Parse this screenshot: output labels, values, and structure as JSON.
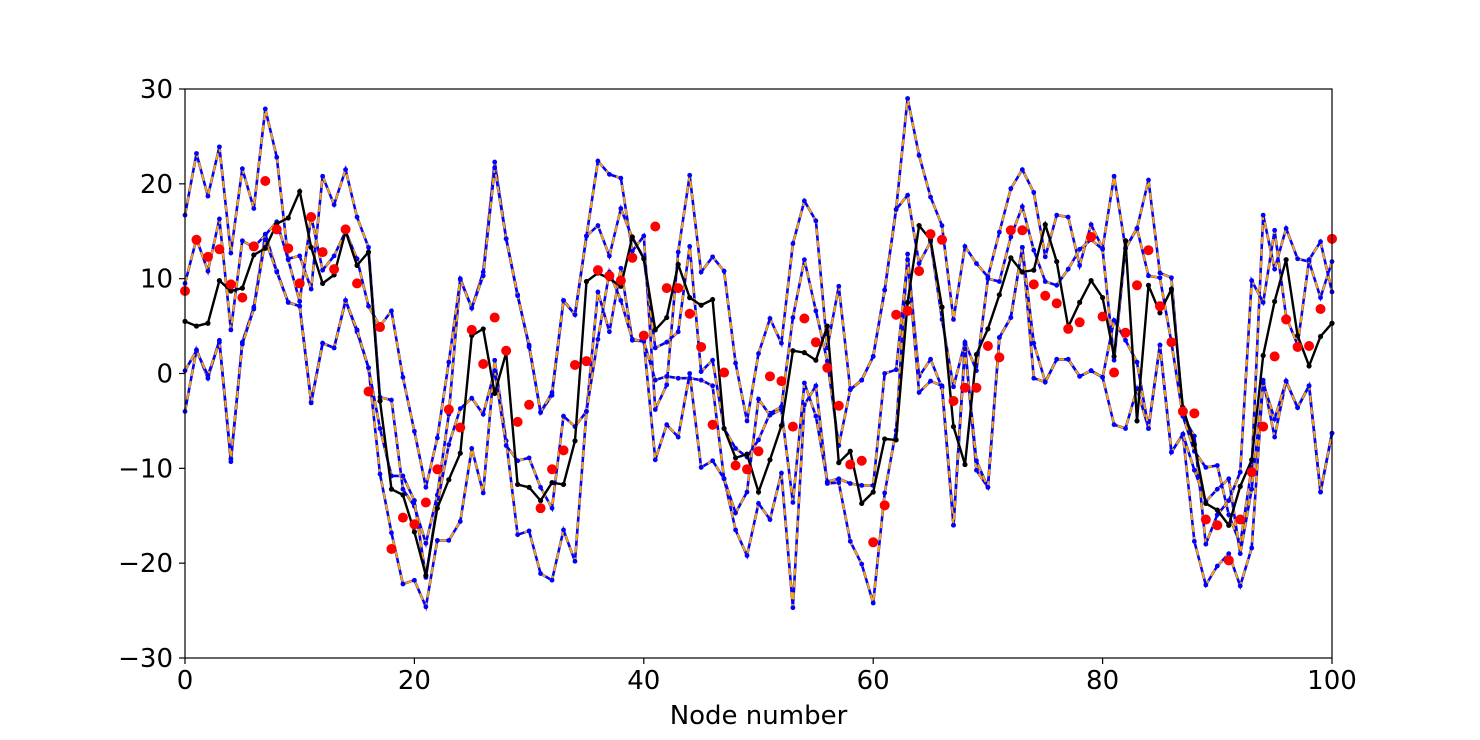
{
  "chart_data": {
    "type": "line",
    "title": "",
    "xlabel": "Node number",
    "ylabel": "",
    "xlim": [
      0,
      100
    ],
    "ylim": [
      -30,
      30
    ],
    "xticks": [
      0,
      20,
      40,
      60,
      80,
      100
    ],
    "yticks": [
      -30,
      -20,
      -10,
      0,
      10,
      20,
      30
    ],
    "x": [
      0,
      1,
      2,
      3,
      4,
      5,
      6,
      7,
      8,
      9,
      10,
      11,
      12,
      13,
      14,
      15,
      16,
      17,
      18,
      19,
      20,
      21,
      22,
      23,
      24,
      25,
      26,
      27,
      28,
      29,
      30,
      31,
      32,
      33,
      34,
      35,
      36,
      37,
      38,
      39,
      40,
      41,
      42,
      43,
      44,
      45,
      46,
      47,
      48,
      49,
      50,
      51,
      52,
      53,
      54,
      55,
      56,
      57,
      58,
      59,
      60,
      61,
      62,
      63,
      64,
      65,
      66,
      67,
      68,
      69,
      70,
      71,
      72,
      73,
      74,
      75,
      76,
      77,
      78,
      79,
      80,
      81,
      82,
      83,
      84,
      85,
      86,
      87,
      88,
      89,
      90,
      91,
      92,
      93,
      94,
      95,
      96,
      97,
      98,
      99,
      100
    ],
    "colors": {
      "mean": "#000000",
      "bands": "#0000ff",
      "band_dash": "#ffa500",
      "observations": "#ff0000"
    },
    "series": [
      {
        "role": "mean",
        "values": [
          5.5,
          5.0,
          5.3,
          9.8,
          8.7,
          9.0,
          12.5,
          13.2,
          15.8,
          16.4,
          19.2,
          13.3,
          9.5,
          10.4,
          15.0,
          11.4,
          12.8,
          -2.9,
          -12.2,
          -12.8,
          -16.7,
          -21.3,
          -14.2,
          -11.2,
          -8.4,
          4.0,
          4.7,
          -2.1,
          2.2,
          -11.7,
          -12.0,
          -13.4,
          -11.5,
          -11.7,
          -7.1,
          9.7,
          10.6,
          10.0,
          9.2,
          14.4,
          12.1,
          4.6,
          5.9,
          11.5,
          8.0,
          7.2,
          7.8,
          -5.8,
          -8.9,
          -8.5,
          -12.5,
          -9.1,
          -5.5,
          2.4,
          2.2,
          1.4,
          5.0,
          -9.4,
          -8.2,
          -13.7,
          -12.5,
          -6.9,
          -7.0,
          7.5,
          15.6,
          14.1,
          7.0,
          -5.6,
          -9.6,
          2.0,
          4.7,
          8.3,
          12.2,
          10.7,
          10.9,
          15.7,
          11.8,
          4.9,
          7.5,
          9.8,
          8.0,
          1.8,
          14.0,
          -5.0,
          9.3,
          6.4,
          8.9,
          -3.6,
          -7.5,
          -13.7,
          -14.4,
          -16.0,
          -11.9,
          -9.1,
          1.9,
          7.6,
          12.0,
          4.0,
          0.8,
          3.9,
          5.3
        ]
      },
      {
        "role": "upper-band-outer",
        "values": [
          16.7,
          23.2,
          18.7,
          23.9,
          12.7,
          21.6,
          17.4,
          27.9,
          22.8,
          12.1,
          12.4,
          8.9,
          20.8,
          17.8,
          21.5,
          16.5,
          13.3,
          -2.5,
          -2.8,
          -12.2,
          -14.0,
          -17.9,
          -12.8,
          -4.3,
          10.0,
          6.9,
          10.7,
          22.3,
          14.2,
          8.3,
          2.8,
          -4.1,
          -2.3,
          7.7,
          6.2,
          14.5,
          22.4,
          21.0,
          20.6,
          12.9,
          14.5,
          -3.8,
          -1.2,
          12.8,
          20.9,
          10.7,
          12.3,
          10.8,
          1.1,
          -5.0,
          2.1,
          5.8,
          3.2,
          13.7,
          18.2,
          16.1,
          2.7,
          9.2,
          -1.7,
          -0.7,
          1.8,
          8.8,
          17.3,
          29.0,
          23.0,
          18.6,
          15.6,
          5.7,
          13.4,
          11.6,
          10.2,
          14.9,
          19.5,
          21.5,
          19.1,
          12.3,
          16.7,
          16.5,
          11.4,
          15.7,
          13.2,
          20.8,
          13.2,
          15.3,
          20.4,
          10.6,
          10.1,
          -4.5,
          -8.2,
          -9.9,
          -9.7,
          -14.9,
          -18.0,
          -9.9,
          16.7,
          11.0,
          15.3,
          12.1,
          11.8,
          8.0,
          11.8
        ]
      },
      {
        "role": "upper-band-inner",
        "values": [
          9.5,
          14.2,
          10.8,
          16.3,
          4.6,
          14.0,
          13.3,
          14.6,
          16.0,
          12.0,
          7.6,
          16.6,
          10.9,
          12.4,
          15.0,
          12.1,
          7.1,
          5.0,
          6.6,
          -0.4,
          -6.1,
          -12.0,
          -6.8,
          1.2,
          9.9,
          6.9,
          10.3,
          21.7,
          14.2,
          8.2,
          3.0,
          -4.1,
          -2.0,
          7.7,
          6.2,
          14.5,
          15.6,
          12.4,
          17.4,
          14.3,
          12.2,
          2.7,
          3.3,
          4.4,
          13.4,
          0.2,
          1.4,
          -5.8,
          -7.9,
          -8.8,
          -7.0,
          -4.2,
          -3.5,
          5.9,
          12.0,
          6.6,
          1.3,
          -7.6,
          -1.7,
          -0.7,
          1.8,
          8.8,
          17.3,
          18.8,
          11.6,
          13.9,
          5.7,
          -1.4,
          3.3,
          0.3,
          10.0,
          9.7,
          14.4,
          17.6,
          13.0,
          9.7,
          9.3,
          11.0,
          13.1,
          14.1,
          13.1,
          1.4,
          13.2,
          15.3,
          10.3,
          10.1,
          3.3,
          -4.5,
          -6.6,
          -18.0,
          -14.9,
          -13.4,
          -10.4,
          9.8,
          7.5,
          15.1,
          6.0,
          3.0,
          12.0,
          13.9,
          8.6
        ]
      },
      {
        "role": "lower-band-inner",
        "values": [
          -4.0,
          2.5,
          -0.5,
          3.5,
          -9.3,
          3.3,
          7.0,
          14.7,
          10.8,
          7.5,
          7.1,
          -3.0,
          3.2,
          2.7,
          7.7,
          4.4,
          0.6,
          -10.6,
          -16.8,
          -22.2,
          -21.8,
          -24.6,
          -17.6,
          -17.6,
          -15.6,
          -7.9,
          -12.6,
          1.4,
          -7.1,
          -17.0,
          -16.6,
          -21.1,
          -21.8,
          -16.5,
          -19.8,
          -4.0,
          8.6,
          4.4,
          11.1,
          3.5,
          3.4,
          -9.1,
          -5.4,
          -6.7,
          0.0,
          -9.9,
          -9.2,
          -11.1,
          -16.5,
          -19.2,
          -13.7,
          -15.4,
          -10.5,
          -24.7,
          -3.3,
          -1.3,
          -11.6,
          -11.5,
          -17.7,
          -20.1,
          -24.2,
          -12.6,
          -6.0,
          12.6,
          -0.3,
          1.5,
          -1.5,
          -16.0,
          3.1,
          -10.2,
          -12.0,
          3.8,
          5.9,
          13.3,
          -0.5,
          -0.9,
          1.5,
          1.5,
          -0.3,
          0.3,
          -0.4,
          -5.4,
          -5.8,
          -1.6,
          -5.8,
          3.0,
          -8.3,
          -6.4,
          -17.7,
          -22.3,
          -20.3,
          -19.0,
          -22.4,
          -18.4,
          -0.7,
          -6.7,
          -0.8,
          -3.6,
          -1.3,
          -12.5,
          -6.3
        ]
      },
      {
        "role": "lower-band-outer",
        "values": [
          0.3,
          2.4,
          -0.2,
          3.3,
          -9.0,
          3.1,
          6.8,
          14.1,
          10.7,
          7.5,
          7.1,
          -3.1,
          3.2,
          2.7,
          7.7,
          4.6,
          0.6,
          -5.8,
          -10.8,
          -10.8,
          -13.4,
          -21.5,
          -13.8,
          -7.5,
          -3.7,
          -2.6,
          -4.3,
          0.3,
          -7.6,
          -9.2,
          -8.9,
          -12.0,
          -14.2,
          -4.5,
          -5.6,
          -4.0,
          3.6,
          10.7,
          7.7,
          3.6,
          3.4,
          -0.7,
          -0.3,
          -0.5,
          -0.5,
          -0.7,
          -1.3,
          -11.1,
          -14.7,
          -12.5,
          -2.7,
          -4.4,
          -3.8,
          -13.6,
          -1.0,
          -4.5,
          -11.4,
          -11.1,
          -11.6,
          -11.8,
          -11.8,
          0.0,
          0.4,
          12.0,
          -2.0,
          -0.8,
          -1.3,
          -16.0,
          2.6,
          -9.2,
          -12.0,
          3.8,
          5.9,
          13.3,
          3.2,
          -0.9,
          1.5,
          1.5,
          -0.3,
          0.3,
          -0.4,
          5.6,
          3.5,
          1.2,
          -5.8,
          3.0,
          -8.3,
          -6.4,
          -10.2,
          -13.5,
          -12.2,
          -11.1,
          -19.0,
          -12.2,
          -1.0,
          -4.8,
          -0.8,
          -3.6,
          -1.3,
          -12.5,
          -6.3
        ]
      }
    ],
    "observations": [
      {
        "x": 0,
        "y": 8.7
      },
      {
        "x": 1,
        "y": 14.1
      },
      {
        "x": 2,
        "y": 12.3
      },
      {
        "x": 3,
        "y": 13.1
      },
      {
        "x": 4,
        "y": 9.4
      },
      {
        "x": 5,
        "y": 8.0
      },
      {
        "x": 6,
        "y": 13.4
      },
      {
        "x": 7,
        "y": 20.3
      },
      {
        "x": 8,
        "y": 15.2
      },
      {
        "x": 9,
        "y": 13.2
      },
      {
        "x": 10,
        "y": 9.5
      },
      {
        "x": 11,
        "y": 16.5
      },
      {
        "x": 12,
        "y": 12.8
      },
      {
        "x": 13,
        "y": 11.0
      },
      {
        "x": 14,
        "y": 15.2
      },
      {
        "x": 15,
        "y": 9.5
      },
      {
        "x": 16,
        "y": -1.9
      },
      {
        "x": 17,
        "y": 4.9
      },
      {
        "x": 18,
        "y": -18.5
      },
      {
        "x": 19,
        "y": -15.2
      },
      {
        "x": 20,
        "y": -15.9
      },
      {
        "x": 21,
        "y": -13.6
      },
      {
        "x": 22,
        "y": -10.1
      },
      {
        "x": 23,
        "y": -3.8
      },
      {
        "x": 24,
        "y": -5.7
      },
      {
        "x": 25,
        "y": 4.6
      },
      {
        "x": 26,
        "y": 1.0
      },
      {
        "x": 27,
        "y": 5.9
      },
      {
        "x": 28,
        "y": 2.4
      },
      {
        "x": 29,
        "y": -5.1
      },
      {
        "x": 30,
        "y": -3.3
      },
      {
        "x": 31,
        "y": -14.2
      },
      {
        "x": 32,
        "y": -10.1
      },
      {
        "x": 33,
        "y": -8.1
      },
      {
        "x": 34,
        "y": 0.9
      },
      {
        "x": 35,
        "y": 1.3
      },
      {
        "x": 36,
        "y": 10.9
      },
      {
        "x": 37,
        "y": 10.3
      },
      {
        "x": 38,
        "y": 9.8
      },
      {
        "x": 39,
        "y": 12.2
      },
      {
        "x": 40,
        "y": 4.0
      },
      {
        "x": 41,
        "y": 15.5
      },
      {
        "x": 42,
        "y": 9.0
      },
      {
        "x": 43,
        "y": 9.0
      },
      {
        "x": 44,
        "y": 6.3
      },
      {
        "x": 45,
        "y": 2.8
      },
      {
        "x": 46,
        "y": -5.4
      },
      {
        "x": 47,
        "y": 0.1
      },
      {
        "x": 48,
        "y": -9.7
      },
      {
        "x": 49,
        "y": -10.1
      },
      {
        "x": 50,
        "y": -8.2
      },
      {
        "x": 51,
        "y": -0.3
      },
      {
        "x": 52,
        "y": -0.8
      },
      {
        "x": 53,
        "y": -5.6
      },
      {
        "x": 54,
        "y": 5.8
      },
      {
        "x": 55,
        "y": 3.3
      },
      {
        "x": 56,
        "y": 0.6
      },
      {
        "x": 57,
        "y": -3.4
      },
      {
        "x": 58,
        "y": -9.6
      },
      {
        "x": 59,
        "y": -9.2
      },
      {
        "x": 60,
        "y": -17.8
      },
      {
        "x": 61,
        "y": -13.9
      },
      {
        "x": 62,
        "y": 6.2
      },
      {
        "x": 63,
        "y": 6.6
      },
      {
        "x": 64,
        "y": 10.8
      },
      {
        "x": 65,
        "y": 14.7
      },
      {
        "x": 66,
        "y": 14.1
      },
      {
        "x": 67,
        "y": -2.9
      },
      {
        "x": 68,
        "y": -1.5
      },
      {
        "x": 69,
        "y": -1.5
      },
      {
        "x": 70,
        "y": 2.9
      },
      {
        "x": 71,
        "y": 1.7
      },
      {
        "x": 72,
        "y": 15.1
      },
      {
        "x": 73,
        "y": 15.1
      },
      {
        "x": 74,
        "y": 9.4
      },
      {
        "x": 75,
        "y": 8.2
      },
      {
        "x": 76,
        "y": 7.4
      },
      {
        "x": 77,
        "y": 4.7
      },
      {
        "x": 78,
        "y": 5.4
      },
      {
        "x": 79,
        "y": 14.4
      },
      {
        "x": 80,
        "y": 6.0
      },
      {
        "x": 81,
        "y": 0.1
      },
      {
        "x": 82,
        "y": 4.3
      },
      {
        "x": 83,
        "y": 9.3
      },
      {
        "x": 84,
        "y": 13.0
      },
      {
        "x": 85,
        "y": 7.1
      },
      {
        "x": 86,
        "y": 3.3
      },
      {
        "x": 87,
        "y": -4.0
      },
      {
        "x": 88,
        "y": -4.2
      },
      {
        "x": 89,
        "y": -15.4
      },
      {
        "x": 90,
        "y": -16.0
      },
      {
        "x": 91,
        "y": -19.7
      },
      {
        "x": 92,
        "y": -15.4
      },
      {
        "x": 93,
        "y": -10.4
      },
      {
        "x": 94,
        "y": -5.6
      },
      {
        "x": 95,
        "y": 1.8
      },
      {
        "x": 96,
        "y": 5.7
      },
      {
        "x": 97,
        "y": 2.8
      },
      {
        "x": 98,
        "y": 2.9
      },
      {
        "x": 99,
        "y": 6.8
      },
      {
        "x": 100,
        "y": 14.2
      }
    ],
    "grid": false,
    "legend": "none"
  }
}
